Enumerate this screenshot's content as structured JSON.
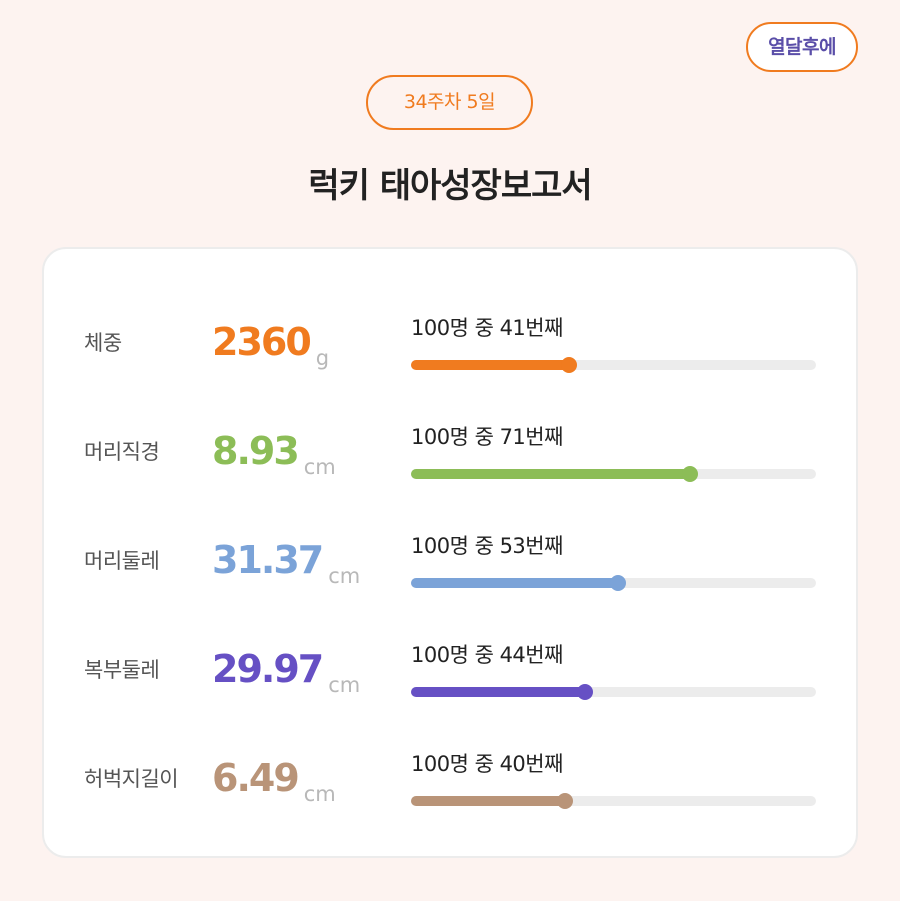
{
  "header": {
    "action_label": "열달후에",
    "week_label": "34주차 5일",
    "title": "럭키 태아성장보고서"
  },
  "metrics": [
    {
      "label": "체중",
      "value": "2360",
      "unit": "g",
      "rank_text": "100명 중 41번째",
      "rank": 41,
      "total": 100,
      "progress": 0.39,
      "color": "#f07b1f"
    },
    {
      "label": "머리직경",
      "value": "8.93",
      "unit": "cm",
      "rank_text": "100명 중 71번째",
      "rank": 71,
      "total": 100,
      "progress": 0.69,
      "color": "#8cbd57"
    },
    {
      "label": "머리둘레",
      "value": "31.37",
      "unit": "cm",
      "rank_text": "100명 중 53번째",
      "rank": 53,
      "total": 100,
      "progress": 0.51,
      "color": "#7ba3d8"
    },
    {
      "label": "복부둘레",
      "value": "29.97",
      "unit": "cm",
      "rank_text": "100명 중 44번째",
      "rank": 44,
      "total": 100,
      "progress": 0.43,
      "color": "#6650c4"
    },
    {
      "label": "허벅지길이",
      "value": "6.49",
      "unit": "cm",
      "rank_text": "100명 중 40번째",
      "rank": 40,
      "total": 100,
      "progress": 0.38,
      "color": "#b99478"
    }
  ]
}
